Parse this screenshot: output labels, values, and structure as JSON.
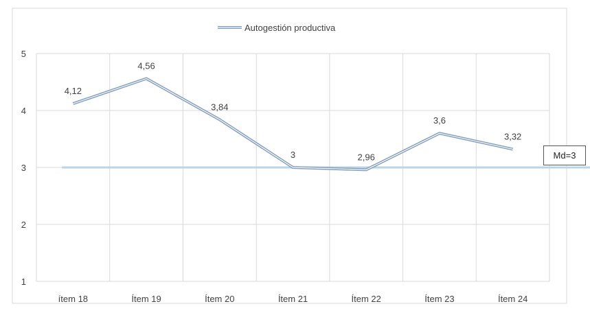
{
  "chart_data": {
    "type": "line",
    "categories": [
      "ítem 18",
      "Ítem 19",
      "Ítem 20",
      "Ítem 21",
      "Ítem 22",
      "Ítem 23",
      "Ítem 24"
    ],
    "series": [
      {
        "name": "Autogestión productiva",
        "values": [
          4.12,
          4.56,
          3.84,
          3,
          2.96,
          3.6,
          3.32
        ]
      }
    ],
    "data_labels": [
      "4,12",
      "4,56",
      "3,84",
      "3",
      "2,96",
      "3,6",
      "3,32"
    ],
    "y_ticks": [
      "1",
      "2",
      "3",
      "4",
      "5"
    ],
    "ylim": [
      1,
      5
    ],
    "grid": true,
    "legend_position": "top",
    "reference_line": {
      "value": 3,
      "label": "Md=3"
    },
    "colors": {
      "series": "#7f9bbf",
      "reference": "#b9d6e3",
      "grid": "#d9d9d9",
      "axis_text": "#404040"
    }
  }
}
